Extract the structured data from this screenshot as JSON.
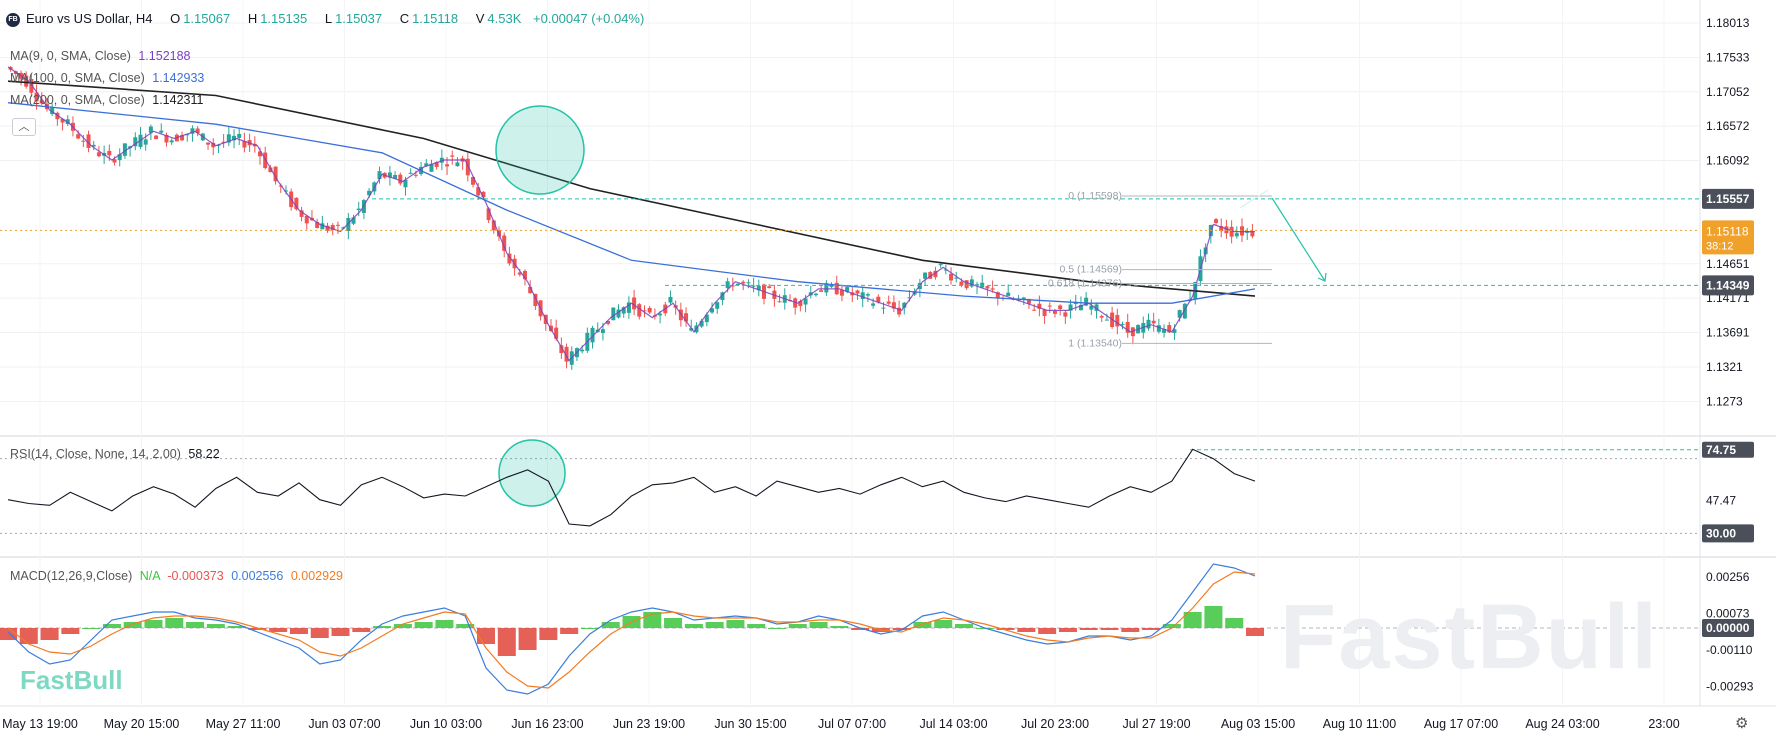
{
  "header": {
    "logo": "FB",
    "title": "Euro vs US Dollar, H4",
    "open_label": "O",
    "open": "1.15067",
    "high_label": "H",
    "high": "1.15135",
    "low_label": "L",
    "low": "1.15037",
    "close_label": "C",
    "close": "1.15118",
    "volume_label": "V",
    "volume": "4.53K",
    "change": "+0.00047 (+0.04%)"
  },
  "indicators": {
    "ma9": {
      "label": "MA(9, 0, SMA, Close)",
      "value": "1.152188",
      "color": "#7b3fbf"
    },
    "ma100": {
      "label": "MA(100, 0, SMA, Close)",
      "value": "1.142933",
      "color": "#3b6fd8"
    },
    "ma200": {
      "label": "MA(200, 0, SMA, Close)",
      "value": "1.142311",
      "color": "#222222"
    },
    "rsi": {
      "label": "RSI(14, Close, None, 14, 2.00)",
      "value": "58.22"
    },
    "macd": {
      "label": "MACD(12,26,9,Close)",
      "hist_value": "N/A",
      "macd_value": "-0.000373",
      "signal_value": "0.002556",
      "third_value": "0.002929"
    }
  },
  "colors": {
    "up": "#26a69a",
    "down": "#ef5350",
    "accent": "#f0a12a",
    "teal_line": "#22c3a6",
    "macd_line": "#3b7ddd",
    "signal_line": "#f27c22"
  },
  "icons": {
    "collapse": "chevron-up-icon",
    "settings": "gear-icon"
  },
  "watermark": "FastBull",
  "chart_data": [
    {
      "type": "candlestick",
      "title": "Euro vs US Dollar, H4",
      "x_tick_labels": [
        "May 13 19:00",
        "May 20 15:00",
        "May 27 11:00",
        "Jun 03 07:00",
        "Jun 10 03:00",
        "Jun 16 23:00",
        "Jun 23 19:00",
        "Jun 30 15:00",
        "Jul 07 07:00",
        "Jul 14 03:00",
        "Jul 20 23:00",
        "Jul 27 19:00",
        "Aug 03 15:00",
        "Aug 10 11:00",
        "Aug 17 07:00",
        "Aug 24 03:00",
        "23:00"
      ],
      "y_ticks": [
        1.18013,
        1.17533,
        1.17052,
        1.16572,
        1.16092,
        1.14651,
        1.14171,
        1.13691,
        1.1321,
        1.1273
      ],
      "ylim": [
        1.1233,
        1.1825
      ],
      "price_path": [
        [
          0,
          1.174
        ],
        [
          1,
          1.172
        ],
        [
          2,
          1.168
        ],
        [
          3,
          1.166
        ],
        [
          4,
          1.163
        ],
        [
          5,
          1.161
        ],
        [
          6,
          1.163
        ],
        [
          7,
          1.165
        ],
        [
          8,
          1.164
        ],
        [
          9,
          1.165
        ],
        [
          10,
          1.163
        ],
        [
          11,
          1.164
        ],
        [
          12,
          1.163
        ],
        [
          13,
          1.158
        ],
        [
          14,
          1.154
        ],
        [
          15,
          1.152
        ],
        [
          16,
          1.151
        ],
        [
          17,
          1.154
        ],
        [
          18,
          1.159
        ],
        [
          19,
          1.158
        ],
        [
          20,
          1.16
        ],
        [
          21,
          1.161
        ],
        [
          22,
          1.161
        ],
        [
          23,
          1.155
        ],
        [
          24,
          1.148
        ],
        [
          25,
          1.144
        ],
        [
          26,
          1.138
        ],
        [
          27,
          1.133
        ],
        [
          28,
          1.136
        ],
        [
          29,
          1.139
        ],
        [
          30,
          1.141
        ],
        [
          31,
          1.139
        ],
        [
          32,
          1.141
        ],
        [
          33,
          1.137
        ],
        [
          34,
          1.141
        ],
        [
          35,
          1.144
        ],
        [
          36,
          1.143
        ],
        [
          37,
          1.142
        ],
        [
          38,
          1.141
        ],
        [
          39,
          1.143
        ],
        [
          40,
          1.143
        ],
        [
          41,
          1.142
        ],
        [
          42,
          1.141
        ],
        [
          43,
          1.14
        ],
        [
          44,
          1.144
        ],
        [
          45,
          1.146
        ],
        [
          46,
          1.144
        ],
        [
          47,
          1.143
        ],
        [
          48,
          1.142
        ],
        [
          49,
          1.141
        ],
        [
          50,
          1.14
        ],
        [
          51,
          1.14
        ],
        [
          52,
          1.141
        ],
        [
          53,
          1.139
        ],
        [
          54,
          1.137
        ],
        [
          55,
          1.138
        ],
        [
          56,
          1.137
        ],
        [
          57,
          1.142
        ],
        [
          58,
          1.152
        ],
        [
          59,
          1.151
        ],
        [
          60,
          1.151
        ]
      ],
      "ma_series": [
        {
          "name": "MA(200, 0, SMA, Close)",
          "points": [
            [
              0,
              1.172
            ],
            [
              10,
              1.17
            ],
            [
              20,
              1.164
            ],
            [
              28,
              1.157
            ],
            [
              36,
              1.152
            ],
            [
              44,
              1.147
            ],
            [
              52,
              1.144
            ],
            [
              60,
              1.142
            ]
          ]
        },
        {
          "name": "MA(100, 0, SMA, Close)",
          "points": [
            [
              0,
              1.169
            ],
            [
              10,
              1.166
            ],
            [
              18,
              1.162
            ],
            [
              24,
              1.154
            ],
            [
              30,
              1.147
            ],
            [
              38,
              1.144
            ],
            [
              46,
              1.142
            ],
            [
              52,
              1.141
            ],
            [
              56,
              1.141
            ],
            [
              60,
              1.143
            ]
          ]
        }
      ],
      "current_price": "1.15118",
      "countdown": "38:12",
      "horizontal_levels": [
        {
          "label": "1.15557",
          "value": 1.15557
        },
        {
          "label": "1.14349",
          "value": 1.14349
        }
      ],
      "fibonacci": [
        {
          "label": "0 (1.15598)",
          "value": 1.15598
        },
        {
          "label": "0.5 (1.14569)",
          "value": 1.14569
        },
        {
          "label": "0.618 (1.14376)",
          "value": 1.14376
        },
        {
          "label": "1 (1.13540)",
          "value": 1.1354
        }
      ]
    },
    {
      "type": "line",
      "title": "RSI(14, Close, None, 14, 2.00)",
      "y_ticks": [
        47.47
      ],
      "levels": [
        {
          "label": "30.00",
          "value": 30.0
        },
        {
          "label": "74.75",
          "value": 74.75
        }
      ],
      "ylim": [
        20,
        80
      ],
      "values": [
        48,
        46,
        45,
        52,
        47,
        42,
        50,
        55,
        51,
        44,
        54,
        60,
        52,
        50,
        57,
        48,
        45,
        56,
        60,
        55,
        49,
        51,
        50,
        55,
        60,
        64,
        58,
        35,
        34,
        40,
        50,
        56,
        57,
        60,
        52,
        55,
        50,
        58,
        55,
        52,
        54,
        51,
        56,
        60,
        55,
        58,
        52,
        49,
        47,
        50,
        48,
        46,
        44,
        50,
        55,
        52,
        58,
        75,
        70,
        62,
        58
      ],
      "current": "58.22"
    },
    {
      "type": "bar+line",
      "title": "MACD(12,26,9,Close)",
      "y_ticks": [
        0.00256,
        0.00073,
        0.0,
        -0.0011,
        -0.00293
      ],
      "ylim": [
        -0.0037,
        0.0033
      ],
      "histogram": [
        -0.0006,
        -0.0008,
        -0.0006,
        -0.0003,
        0.0,
        0.0002,
        0.0003,
        0.0004,
        0.0005,
        0.0003,
        0.0002,
        0.0001,
        -0.0001,
        -0.0002,
        -0.0003,
        -0.0005,
        -0.0004,
        -0.0002,
        0.0001,
        0.0002,
        0.0003,
        0.0004,
        0.0002,
        -0.0008,
        -0.0014,
        -0.0011,
        -0.0006,
        -0.0003,
        0.0,
        0.0003,
        0.0006,
        0.0008,
        0.0005,
        0.0002,
        0.0003,
        0.0004,
        0.0002,
        0.0,
        0.0002,
        0.0003,
        0.0001,
        -0.0001,
        -0.0002,
        -0.0001,
        0.0003,
        0.0004,
        0.0002,
        0.0,
        -0.0001,
        -0.0002,
        -0.0003,
        -0.0002,
        -0.0001,
        -0.0001,
        -0.0002,
        -0.0001,
        0.0002,
        0.0008,
        0.0011,
        0.0005,
        -0.0004
      ],
      "macd_line": [
        -0.0002,
        -0.0012,
        -0.0018,
        -0.0016,
        -0.0006,
        0.0004,
        0.0006,
        0.0008,
        0.0008,
        0.0005,
        0.0004,
        0.0002,
        -0.0002,
        -0.0006,
        -0.001,
        -0.0018,
        -0.0016,
        -0.0006,
        0.0002,
        0.0006,
        0.0008,
        0.001,
        0.0006,
        -0.002,
        -0.0031,
        -0.0033,
        -0.0028,
        -0.0014,
        -0.0003,
        0.0004,
        0.0008,
        0.001,
        0.0008,
        0.0004,
        0.0005,
        0.0006,
        0.0005,
        0.0002,
        0.0003,
        0.0006,
        0.0004,
        0.0,
        -0.0003,
        -0.0001,
        0.0006,
        0.0008,
        0.0004,
        0.0,
        -0.0003,
        -0.0006,
        -0.0008,
        -0.0007,
        -0.0004,
        -0.0004,
        -0.0006,
        -0.0004,
        0.0004,
        0.0018,
        0.0032,
        0.003,
        0.0026
      ],
      "signal_line": [
        0.0,
        -0.0008,
        -0.0012,
        -0.0013,
        -0.0009,
        -0.0003,
        0.0002,
        0.0005,
        0.0006,
        0.0006,
        0.0005,
        0.0003,
        0.0,
        -0.0003,
        -0.0006,
        -0.0012,
        -0.0014,
        -0.001,
        -0.0004,
        0.0002,
        0.0005,
        0.0008,
        0.0007,
        -0.001,
        -0.0022,
        -0.0029,
        -0.003,
        -0.0022,
        -0.0012,
        -0.0003,
        0.0003,
        0.0007,
        0.0008,
        0.0006,
        0.0005,
        0.0005,
        0.0005,
        0.0003,
        0.0003,
        0.0004,
        0.0004,
        0.0002,
        -0.0001,
        -0.0002,
        0.0002,
        0.0005,
        0.0004,
        0.0002,
        -0.0001,
        -0.0004,
        -0.0006,
        -0.0007,
        -0.0005,
        -0.0004,
        -0.0005,
        -0.0005,
        0.0,
        0.001,
        0.0022,
        0.0028,
        0.0027
      ],
      "current_label": "0.00000"
    }
  ]
}
